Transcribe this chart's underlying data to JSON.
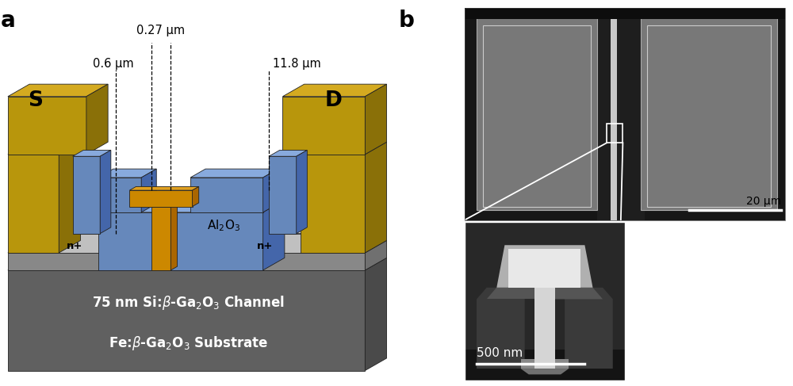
{
  "fig_width": 10.0,
  "fig_height": 4.87,
  "dpi": 100,
  "bg_color": "#ffffff",
  "panel_a": {
    "label": "a",
    "label_fontsize": 20,
    "label_fontweight": "bold",
    "colors": {
      "substrate_face": "#606060",
      "substrate_top": "#787878",
      "substrate_side": "#4a4a4a",
      "channel_face": "#888888",
      "channel_top": "#aaaaaa",
      "channel_side": "#707070",
      "nplus_face": "#c0c0c0",
      "nplus_top": "#d8d8d8",
      "nplus_side": "#a8a8a8",
      "dielectric_face": "#6688bb",
      "dielectric_top": "#88aadd",
      "dielectric_side": "#4466aa",
      "source_face": "#b8960c",
      "source_top": "#d4aa20",
      "source_side": "#8a7008",
      "tgate_face": "#cc8800",
      "tgate_top": "#e0a020",
      "tgate_side": "#aa6600"
    },
    "dim_labels": [
      "0.27 μm",
      "0.6 μm",
      "11.8 μm"
    ],
    "source_label": "S",
    "drain_label": "D",
    "nplus_label": "n+",
    "dielectric_label": "Al$_2$O$_3$",
    "channel_label": "75 nm Si:β-Ga$_2$O$_3$ Channel",
    "substrate_label": "Fe:β-Ga$_2$O$_3$ Substrate"
  },
  "panel_b": {
    "label": "b",
    "label_fontsize": 20,
    "label_fontweight": "bold",
    "scalebar_main": "20 μm",
    "scalebar_inset": "500 nm",
    "sem_bg": "#111111",
    "sem_dark": "#1e1e1e",
    "sem_pad_color": "#787878",
    "sem_pad_border": "#bbbbbb",
    "sem_gate_strip": "#dddddd",
    "inset_bg": "#0d0d0d"
  }
}
